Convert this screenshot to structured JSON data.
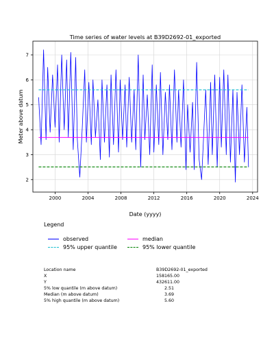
{
  "chart_data": {
    "type": "line",
    "title": "Time series of water levels at  B39D2692-01_exported",
    "xlabel": "Date (yyyy)",
    "ylabel": "Meter above datum",
    "xlim": [
      1997.3,
      2024.6
    ],
    "ylim": [
      1.5,
      7.55
    ],
    "x_ticks": [
      2000,
      2004,
      2008,
      2012,
      2016,
      2020,
      2024
    ],
    "y_ticks": [
      2,
      3,
      4,
      5,
      6,
      7
    ],
    "grid": true,
    "series": [
      {
        "name": "observed",
        "color": "#0000ff",
        "x": [
          1998.0,
          1998.3,
          1998.6,
          1998.9,
          1999.1,
          1999.4,
          1999.7,
          2000.0,
          2000.3,
          2000.5,
          2000.8,
          2001.1,
          2001.4,
          2001.6,
          2001.9,
          2002.2,
          2002.5,
          2002.7,
          2003.0,
          2003.3,
          2003.6,
          2003.8,
          2004.1,
          2004.4,
          2004.6,
          2004.9,
          2005.2,
          2005.5,
          2005.7,
          2006.0,
          2006.3,
          2006.6,
          2006.8,
          2007.1,
          2007.4,
          2007.7,
          2007.9,
          2008.2,
          2008.5,
          2008.7,
          2009.0,
          2009.3,
          2009.6,
          2009.8,
          2010.1,
          2010.4,
          2010.7,
          2010.9,
          2011.2,
          2011.5,
          2011.8,
          2012.0,
          2012.3,
          2012.6,
          2012.8,
          2013.1,
          2013.4,
          2013.7,
          2013.9,
          2014.2,
          2014.5,
          2014.8,
          2015.0,
          2015.3,
          2015.6,
          2015.9,
          2016.1,
          2016.4,
          2016.7,
          2016.9,
          2017.2,
          2017.5,
          2017.8,
          2018.0,
          2018.3,
          2018.6,
          2018.9,
          2019.1,
          2019.4,
          2019.7,
          2020.0,
          2020.2,
          2020.5,
          2020.8,
          2021.0,
          2021.3,
          2021.6,
          2021.9,
          2022.1,
          2022.4,
          2022.7,
          2023.0,
          2023.3,
          2023.5
        ],
        "values": [
          5.3,
          3.4,
          7.2,
          3.6,
          6.5,
          3.9,
          6.2,
          4.1,
          6.6,
          3.5,
          7.0,
          4.0,
          6.8,
          3.7,
          7.1,
          3.2,
          6.9,
          3.6,
          2.1,
          4.1,
          6.4,
          3.5,
          5.9,
          3.4,
          6.0,
          3.7,
          5.2,
          2.8,
          6.0,
          3.5,
          5.8,
          2.9,
          6.2,
          3.4,
          6.4,
          3.1,
          6.0,
          3.6,
          5.8,
          3.3,
          6.1,
          3.5,
          5.6,
          3.2,
          7.0,
          2.5,
          6.2,
          3.6,
          5.4,
          3.0,
          6.6,
          3.1,
          5.8,
          3.4,
          6.3,
          3.0,
          5.5,
          3.6,
          5.8,
          3.2,
          6.4,
          3.5,
          5.6,
          3.3,
          6.0,
          2.4,
          5.0,
          3.1,
          5.1,
          2.4,
          6.7,
          2.8,
          2.0,
          3.4,
          5.6,
          2.6,
          5.9,
          3.0,
          6.2,
          2.5,
          6.1,
          3.3,
          6.4,
          3.0,
          6.2,
          2.7,
          5.6,
          1.9,
          5.5,
          3.0,
          5.8,
          2.7,
          4.9,
          2.5
        ]
      },
      {
        "name": "95% upper quantile",
        "color": "#17becf",
        "value": 5.6
      },
      {
        "name": "median",
        "color": "#ff00ff",
        "value": 3.69
      },
      {
        "name": "95% lower quantile",
        "color": "#008000",
        "value": 2.51
      }
    ]
  },
  "legend": {
    "title": "Legend",
    "items": [
      {
        "label": "observed",
        "color": "#0000ff",
        "style": "solid"
      },
      {
        "label": "median",
        "color": "#ff00ff",
        "style": "solid"
      },
      {
        "label": "95% upper quantile",
        "color": "#17becf",
        "style": "dashed"
      },
      {
        "label": "95% lower quantile",
        "color": "#008000",
        "style": "dashed"
      }
    ]
  },
  "info": {
    "rows": [
      {
        "label": "Location name",
        "value": "B39D2692-01_exported"
      },
      {
        "label": "X",
        "value": "158165.00"
      },
      {
        "label": "Y",
        "value": "432611.00"
      },
      {
        "label": "5% low quantile (m above datum)",
        "value": "      2.51"
      },
      {
        "label": "Median (m above datum)",
        "value": "      3.69"
      },
      {
        "label": "5% high quantile (m above datum)",
        "value": "      5.60"
      }
    ]
  }
}
